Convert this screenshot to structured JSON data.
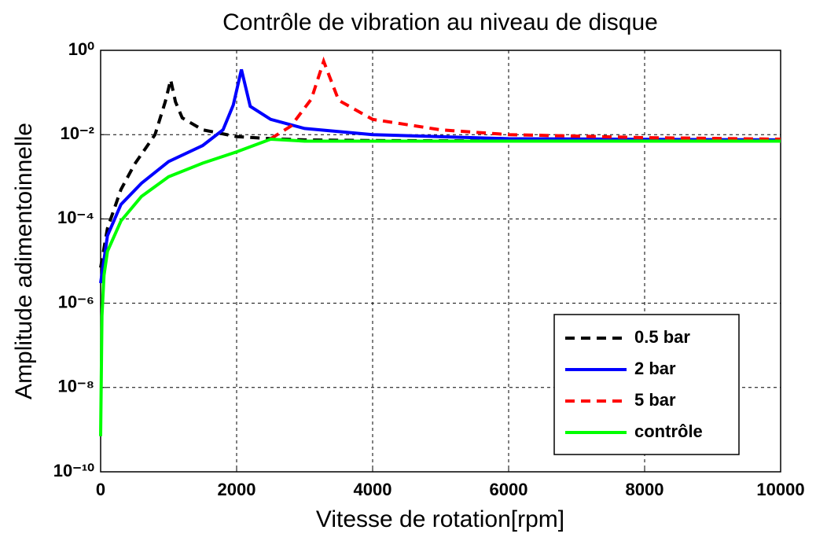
{
  "chart_data": {
    "type": "line",
    "title": "Contrôle de vibration au niveau de disque",
    "xlabel": "Vitesse de rotation[rpm]",
    "ylabel": "Amplitude adimentoinnelle",
    "xlim": [
      0,
      10000
    ],
    "xticks": [
      0,
      2000,
      4000,
      6000,
      8000,
      10000
    ],
    "ylim": [
      1e-10,
      1
    ],
    "yscale": "log",
    "yticks": [
      {
        "value": 1e-10,
        "label": "10⁻¹⁰"
      },
      {
        "value": 1e-08,
        "label": "10⁻⁸"
      },
      {
        "value": 1e-06,
        "label": "10⁻⁶"
      },
      {
        "value": 0.0001,
        "label": "10⁻⁴"
      },
      {
        "value": 0.01,
        "label": "10⁻²"
      },
      {
        "value": 1,
        "label": "10⁰"
      }
    ],
    "grid": true,
    "legend": "lower right",
    "series": [
      {
        "name": "0.5 bar",
        "color": "#000000",
        "dashed": true,
        "x": [
          0,
          100,
          300,
          500,
          800,
          950,
          1030,
          1100,
          1200,
          1500,
          2000,
          2500,
          3000,
          4000,
          6000,
          10000
        ],
        "values": [
          7e-06,
          6e-05,
          0.0005,
          0.002,
          0.01,
          0.06,
          0.2,
          0.06,
          0.025,
          0.013,
          0.009,
          0.008,
          0.0075,
          0.0072,
          0.0071,
          0.007
        ]
      },
      {
        "name": "2 bar",
        "color": "#0000ff",
        "dashed": false,
        "x": [
          0,
          100,
          300,
          600,
          1000,
          1500,
          1800,
          1950,
          2070,
          2200,
          2500,
          3000,
          4000,
          6000,
          10000
        ],
        "values": [
          3e-06,
          4e-05,
          0.00022,
          0.0007,
          0.0023,
          0.0055,
          0.013,
          0.05,
          0.35,
          0.047,
          0.023,
          0.014,
          0.01,
          0.008,
          0.0075
        ]
      },
      {
        "name": "5 bar",
        "color": "#ff0000",
        "dashed": true,
        "x": [
          2500,
          2800,
          3100,
          3280,
          3500,
          4000,
          5000,
          6000,
          8000,
          10000
        ],
        "values": [
          0.008,
          0.016,
          0.07,
          0.55,
          0.065,
          0.023,
          0.013,
          0.01,
          0.0085,
          0.0078
        ]
      },
      {
        "name": "contrôle",
        "color": "#00ff00",
        "dashed": false,
        "x": [
          0,
          20,
          50,
          100,
          300,
          600,
          1000,
          1500,
          2000,
          2500,
          3000,
          10000
        ],
        "values": [
          7e-10,
          5e-07,
          4.6e-06,
          1.7e-05,
          9e-05,
          0.00034,
          0.001,
          0.0021,
          0.0039,
          0.0078,
          0.007,
          0.007
        ]
      }
    ]
  }
}
